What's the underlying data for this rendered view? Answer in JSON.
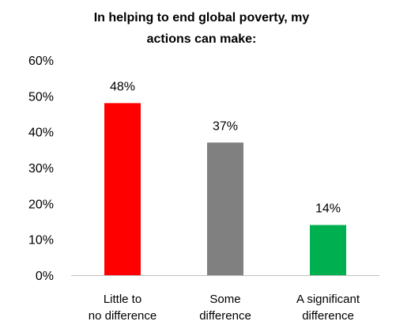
{
  "chart_data": {
    "type": "bar",
    "title_lines": [
      "In helping to end global poverty, my",
      "actions can make:"
    ],
    "categories": [
      [
        "Little to",
        "no difference"
      ],
      [
        "Some",
        "difference"
      ],
      [
        "A significant",
        "difference"
      ]
    ],
    "values": [
      48,
      37,
      14
    ],
    "data_labels": [
      "48%",
      "37%",
      "14%"
    ],
    "colors": [
      "#ff0000",
      "#808080",
      "#00b050"
    ],
    "ylim": [
      0,
      60
    ],
    "yticks": [
      0,
      10,
      20,
      30,
      40,
      50,
      60
    ],
    "ytick_labels": [
      "0%",
      "10%",
      "20%",
      "30%",
      "40%",
      "50%",
      "60%"
    ],
    "grid": false,
    "legend": "none"
  }
}
